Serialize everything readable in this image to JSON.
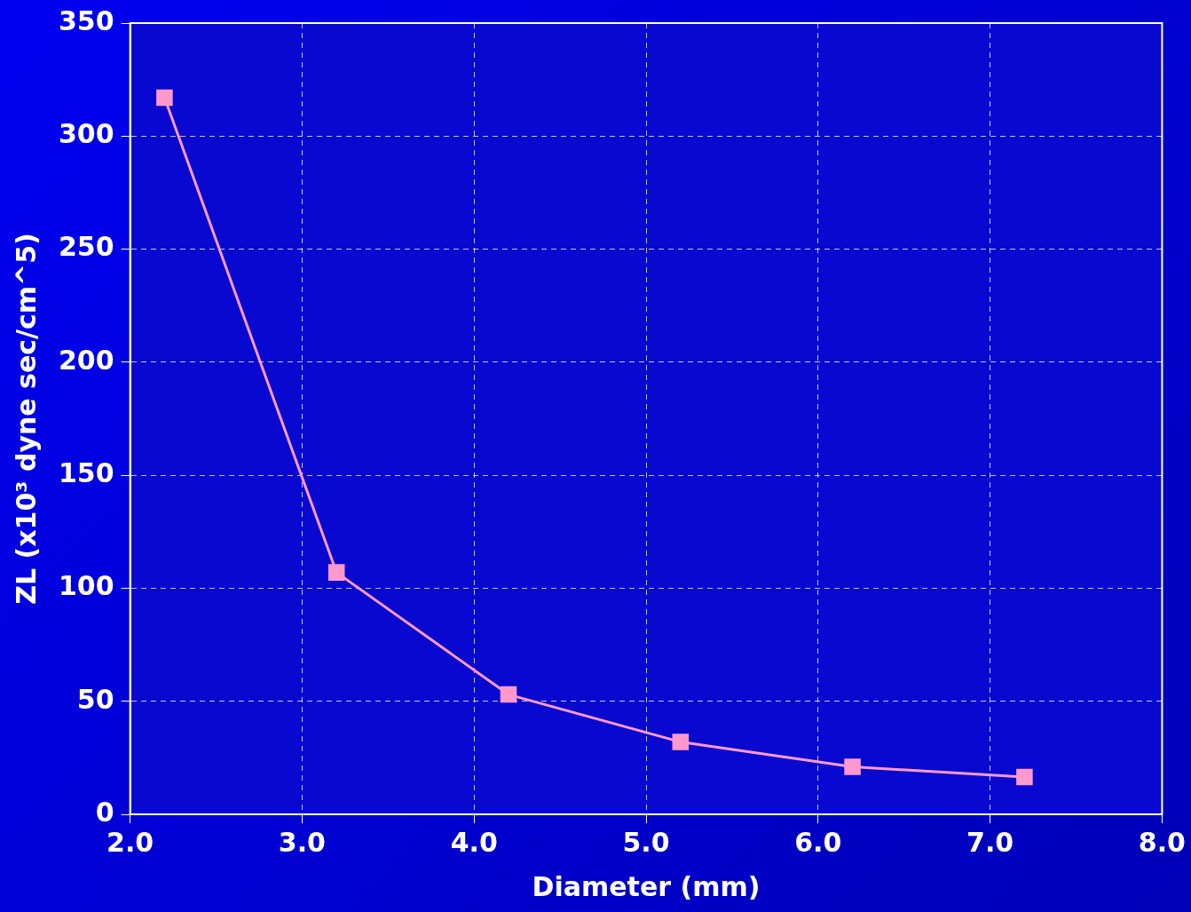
{
  "chart_data": {
    "type": "line",
    "xlabel": "Diameter (mm)",
    "ylabel": "ZL (x10³ dyne sec/cm^5)",
    "x": [
      2.2,
      3.2,
      4.2,
      5.2,
      6.2,
      7.2
    ],
    "series": [
      {
        "color": "#ff99cc",
        "values": [
          317,
          107,
          53,
          32,
          21,
          16.5
        ]
      }
    ],
    "xlim": [
      2.0,
      8.0
    ],
    "xticks": [
      {
        "value": 2,
        "label": "2.0"
      },
      {
        "value": 3,
        "label": "3.0"
      },
      {
        "value": 4,
        "label": "4.0"
      },
      {
        "value": 5,
        "label": "5.0"
      },
      {
        "value": 6,
        "label": "6.0"
      },
      {
        "value": 7,
        "label": "7.0"
      },
      {
        "value": 8,
        "label": "8.0"
      }
    ],
    "ylim": [
      0,
      350
    ],
    "yticks": [
      0,
      50,
      100,
      150,
      200,
      250,
      300,
      350
    ],
    "grid": true,
    "legend": false,
    "marker": "square",
    "line_style": "solid"
  }
}
